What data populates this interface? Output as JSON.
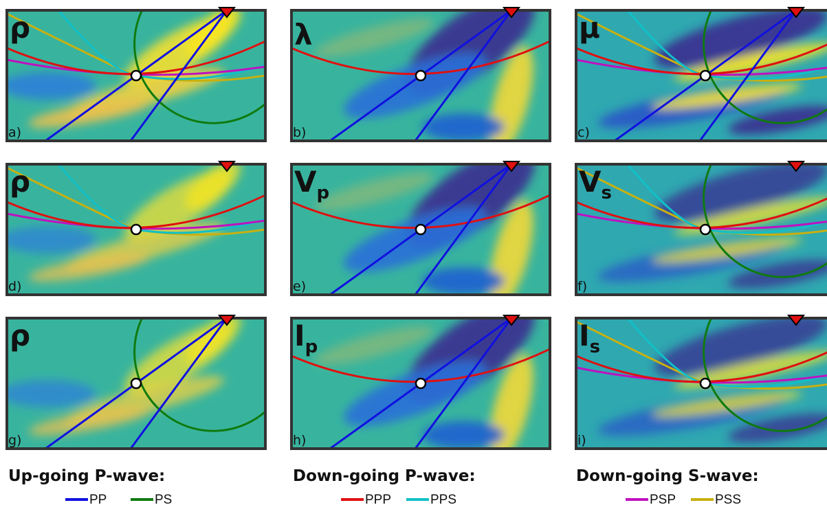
{
  "panels": [
    {
      "symbol": "ρ",
      "label": "a)"
    },
    {
      "symbol": "λ",
      "label": "b)"
    },
    {
      "symbol": "μ",
      "label": "c)"
    },
    {
      "symbol": "ρ",
      "label": "d)"
    },
    {
      "symbol": "V",
      "subscript": "p",
      "label": "e)"
    },
    {
      "symbol": "V",
      "subscript": "s",
      "label": "f)"
    },
    {
      "symbol": "ρ",
      "label": "g)"
    },
    {
      "symbol": "I",
      "subscript": "p",
      "label": "h)"
    },
    {
      "symbol": "I",
      "subscript": "s",
      "label": "i)"
    }
  ],
  "legend": [
    {
      "title": "Up-going P-wave:",
      "entries": [
        {
          "name": "PP",
          "color": "#1010e0"
        },
        {
          "name": "PS",
          "color": "#0f7a0f"
        }
      ]
    },
    {
      "title": "Down-going P-wave:",
      "entries": [
        {
          "name": "PPP",
          "color": "#e01010"
        },
        {
          "name": "PPS",
          "color": "#10c0c8"
        }
      ]
    },
    {
      "title": "Down-going S-wave:",
      "entries": [
        {
          "name": "PSP",
          "color": "#c010c0"
        },
        {
          "name": "PSS",
          "color": "#c8b010"
        }
      ]
    }
  ]
}
